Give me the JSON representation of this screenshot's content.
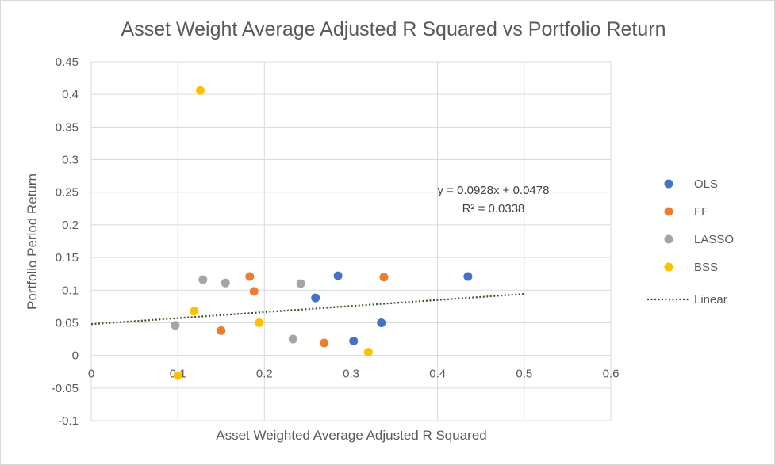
{
  "chart_data": {
    "type": "scatter",
    "title": "Asset Weight Average Adjusted R Squared vs Portfolio Return",
    "xlabel": "Asset Weighted Average Adjusted R Squared",
    "ylabel": "Portfolio Period Return",
    "xlim": [
      0,
      0.6
    ],
    "ylim": [
      -0.1,
      0.45
    ],
    "xticks": [
      "0",
      "0.1",
      "0.2",
      "0.3",
      "0.4",
      "0.5",
      "0.6"
    ],
    "yticks": [
      "-0.1",
      "-0.05",
      "0",
      "0.05",
      "0.1",
      "0.15",
      "0.2",
      "0.25",
      "0.3",
      "0.35",
      "0.4",
      "0.45"
    ],
    "grid": true,
    "legend_position": "right",
    "series": [
      {
        "name": "OLS",
        "color": "#4472c4",
        "points": [
          [
            0.285,
            0.122
          ],
          [
            0.435,
            0.121
          ],
          [
            0.259,
            0.088
          ],
          [
            0.335,
            0.05
          ],
          [
            0.303,
            0.022
          ]
        ]
      },
      {
        "name": "FF",
        "color": "#ed7d31",
        "points": [
          [
            0.183,
            0.121
          ],
          [
            0.338,
            0.12
          ],
          [
            0.188,
            0.098
          ],
          [
            0.15,
            0.038
          ],
          [
            0.269,
            0.019
          ]
        ]
      },
      {
        "name": "LASSO",
        "color": "#a5a5a5",
        "points": [
          [
            0.129,
            0.116
          ],
          [
            0.155,
            0.111
          ],
          [
            0.242,
            0.11
          ],
          [
            0.097,
            0.046
          ],
          [
            0.233,
            0.025
          ]
        ]
      },
      {
        "name": "BSS",
        "color": "#ffc000",
        "points": [
          [
            0.126,
            0.406
          ],
          [
            0.119,
            0.068
          ],
          [
            0.194,
            0.05
          ],
          [
            0.32,
            0.005
          ],
          [
            0.1,
            -0.031
          ]
        ]
      }
    ],
    "trendline": {
      "name": "Linear",
      "color": "#375623",
      "style": "dotted",
      "slope": 0.0928,
      "intercept": 0.0478,
      "x_range": [
        0,
        0.5
      ],
      "equation": "y = 0.0928x + 0.0478",
      "r_squared": "R² = 0.0338"
    }
  }
}
